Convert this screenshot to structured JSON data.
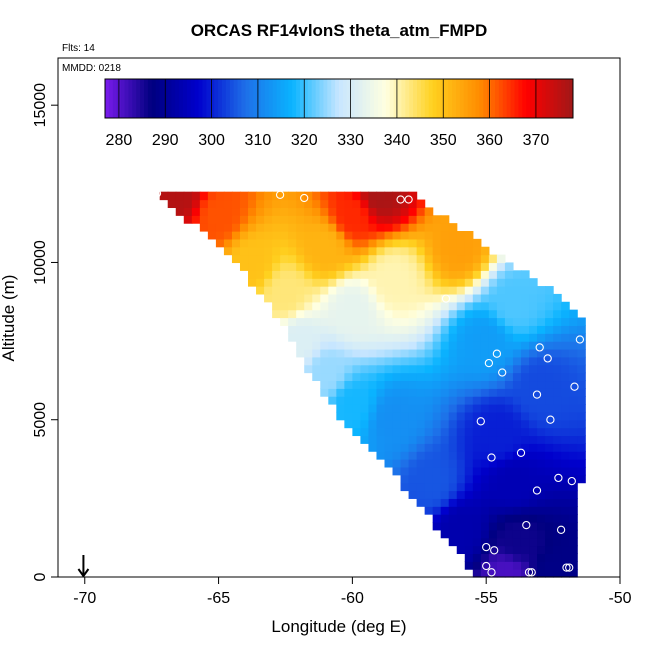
{
  "chart_data": {
    "type": "heatmap",
    "title": "ORCAS RF14vlonS theta_atm_FMPD",
    "annotations": [
      "Flts: 14",
      "MMDD: 0218"
    ],
    "xlabel": "Longitude (deg E)",
    "ylabel": "Altitude (m)",
    "xlim": [
      -71,
      -50
    ],
    "ylim": [
      0,
      16500
    ],
    "x_ticks": [
      -70,
      -65,
      -60,
      -55,
      -50
    ],
    "y_ticks": [
      0,
      5000,
      10000,
      15000
    ],
    "grid": false,
    "colorbar": {
      "placement": "top-inset",
      "range": [
        277,
        378
      ],
      "ticks": [
        280,
        290,
        300,
        310,
        320,
        330,
        340,
        350,
        360,
        370
      ],
      "colors": [
        "#7a1bee",
        "#00007f",
        "#0000cd",
        "#1e6fe8",
        "#0ab4ff",
        "#c8e6ff",
        "#ffffe0",
        "#ffd11f",
        "#ff8c00",
        "#ff0000",
        "#a01818"
      ]
    },
    "cell_size": {
      "lon": 0.3,
      "alt": 250
    },
    "domain_bounds": [
      [
        0,
        -55.4,
        -51.8
      ],
      [
        500,
        -55.8,
        -51.8
      ],
      [
        1000,
        -56.3,
        -51.8
      ],
      [
        2000,
        -57.2,
        -51.6
      ],
      [
        3000,
        -58.2,
        -51.6
      ],
      [
        4000,
        -59.3,
        -51.5
      ],
      [
        5000,
        -60.4,
        -51.5
      ],
      [
        6000,
        -61.2,
        -51.5
      ],
      [
        7000,
        -62.0,
        -51.4
      ],
      [
        8000,
        -62.6,
        -51.4
      ],
      [
        9000,
        -63.4,
        -52.5
      ],
      [
        10000,
        -64.4,
        -54.3
      ],
      [
        11000,
        -65.6,
        -56.0
      ],
      [
        12000,
        -67.2,
        -57.7
      ],
      [
        12250,
        -67.4,
        -57.8
      ]
    ],
    "field_anchors": [
      [
        0,
        -54.2,
        281
      ],
      [
        0,
        -52.5,
        288
      ],
      [
        1200,
        -53.8,
        286
      ],
      [
        1500,
        -56.0,
        293
      ],
      [
        3000,
        -54.0,
        294
      ],
      [
        3000,
        -57.0,
        305
      ],
      [
        4500,
        -54.5,
        300
      ],
      [
        5000,
        -58.5,
        312
      ],
      [
        5500,
        -60.0,
        318
      ],
      [
        6000,
        -53.0,
        304
      ],
      [
        6500,
        -61.0,
        325
      ],
      [
        7500,
        -62.0,
        331
      ],
      [
        7500,
        -55.0,
        314
      ],
      [
        8500,
        -60.0,
        333
      ],
      [
        8700,
        -54.0,
        321
      ],
      [
        9000,
        -62.5,
        343
      ],
      [
        9500,
        -58.5,
        340
      ],
      [
        10000,
        -63.8,
        350
      ],
      [
        10500,
        -61.0,
        352
      ],
      [
        10500,
        -56.0,
        355
      ],
      [
        11500,
        -65.0,
        362
      ],
      [
        11500,
        -60.0,
        365
      ],
      [
        12200,
        -66.5,
        376
      ],
      [
        12200,
        -59.0,
        377
      ]
    ],
    "flight_points": [
      [
        -67.3,
        12200
      ],
      [
        -62.7,
        12150
      ],
      [
        -61.8,
        12050
      ],
      [
        -58.2,
        12000
      ],
      [
        -57.9,
        12000
      ],
      [
        -56.5,
        8850
      ],
      [
        -51.5,
        7550
      ],
      [
        -54.6,
        7100
      ],
      [
        -54.9,
        6800
      ],
      [
        -53.0,
        7300
      ],
      [
        -52.7,
        6950
      ],
      [
        -54.4,
        6500
      ],
      [
        -51.7,
        6050
      ],
      [
        -53.1,
        5800
      ],
      [
        -55.2,
        4950
      ],
      [
        -52.6,
        5000
      ],
      [
        -53.7,
        3950
      ],
      [
        -54.8,
        3800
      ],
      [
        -52.3,
        3150
      ],
      [
        -51.8,
        3050
      ],
      [
        -53.1,
        2750
      ],
      [
        -53.5,
        1650
      ],
      [
        -52.2,
        1500
      ],
      [
        -55.0,
        950
      ],
      [
        -54.7,
        850
      ],
      [
        -55.0,
        350
      ],
      [
        -54.8,
        150
      ],
      [
        -53.4,
        150
      ],
      [
        -53.3,
        150
      ],
      [
        -52.0,
        300
      ],
      [
        -51.9,
        300
      ]
    ],
    "marker": {
      "type": "arrow",
      "x": -70.05,
      "y": 0
    }
  }
}
